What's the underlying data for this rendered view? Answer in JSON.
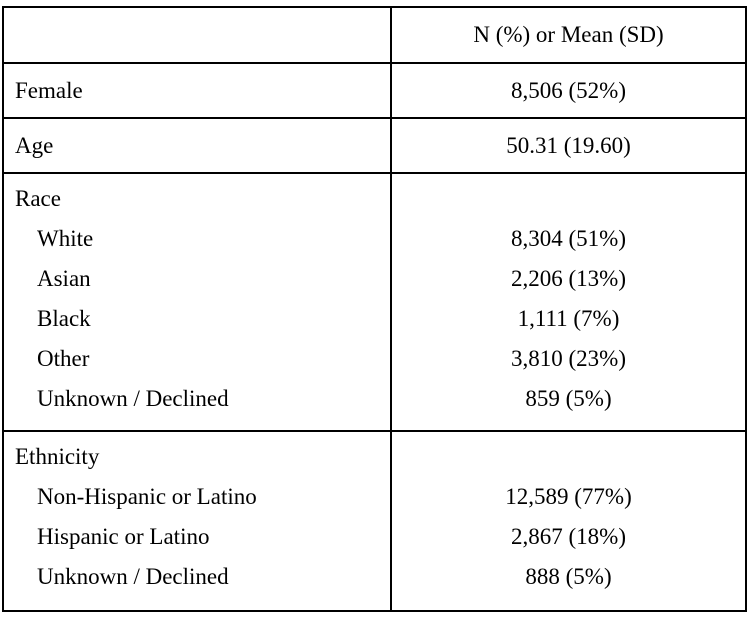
{
  "table": {
    "header_col2": "N (%) or Mean (SD)",
    "sections": [
      {
        "name": "female",
        "rows": [
          {
            "label": "Female",
            "value": "8,506 (52%)"
          }
        ]
      },
      {
        "name": "age",
        "rows": [
          {
            "label": "Age",
            "value": "50.31 (19.60)"
          }
        ]
      },
      {
        "name": "race",
        "rows": [
          {
            "label": "Race",
            "value": ""
          },
          {
            "label": "White",
            "value": "8,304 (51%)"
          },
          {
            "label": "Asian",
            "value": "2,206 (13%)"
          },
          {
            "label": "Black",
            "value": "1,111 (7%)"
          },
          {
            "label": "Other",
            "value": "3,810 (23%)"
          },
          {
            "label": "Unknown / Declined",
            "value": "859 (5%)"
          }
        ]
      },
      {
        "name": "ethnicity",
        "rows": [
          {
            "label": "Ethnicity",
            "value": ""
          },
          {
            "label": "Non-Hispanic or Latino",
            "value": "12,589 (77%)"
          },
          {
            "label": "Hispanic or Latino",
            "value": "2,867 (18%)"
          },
          {
            "label": "Unknown / Declined",
            "value": "888 (5%)"
          }
        ]
      }
    ]
  }
}
